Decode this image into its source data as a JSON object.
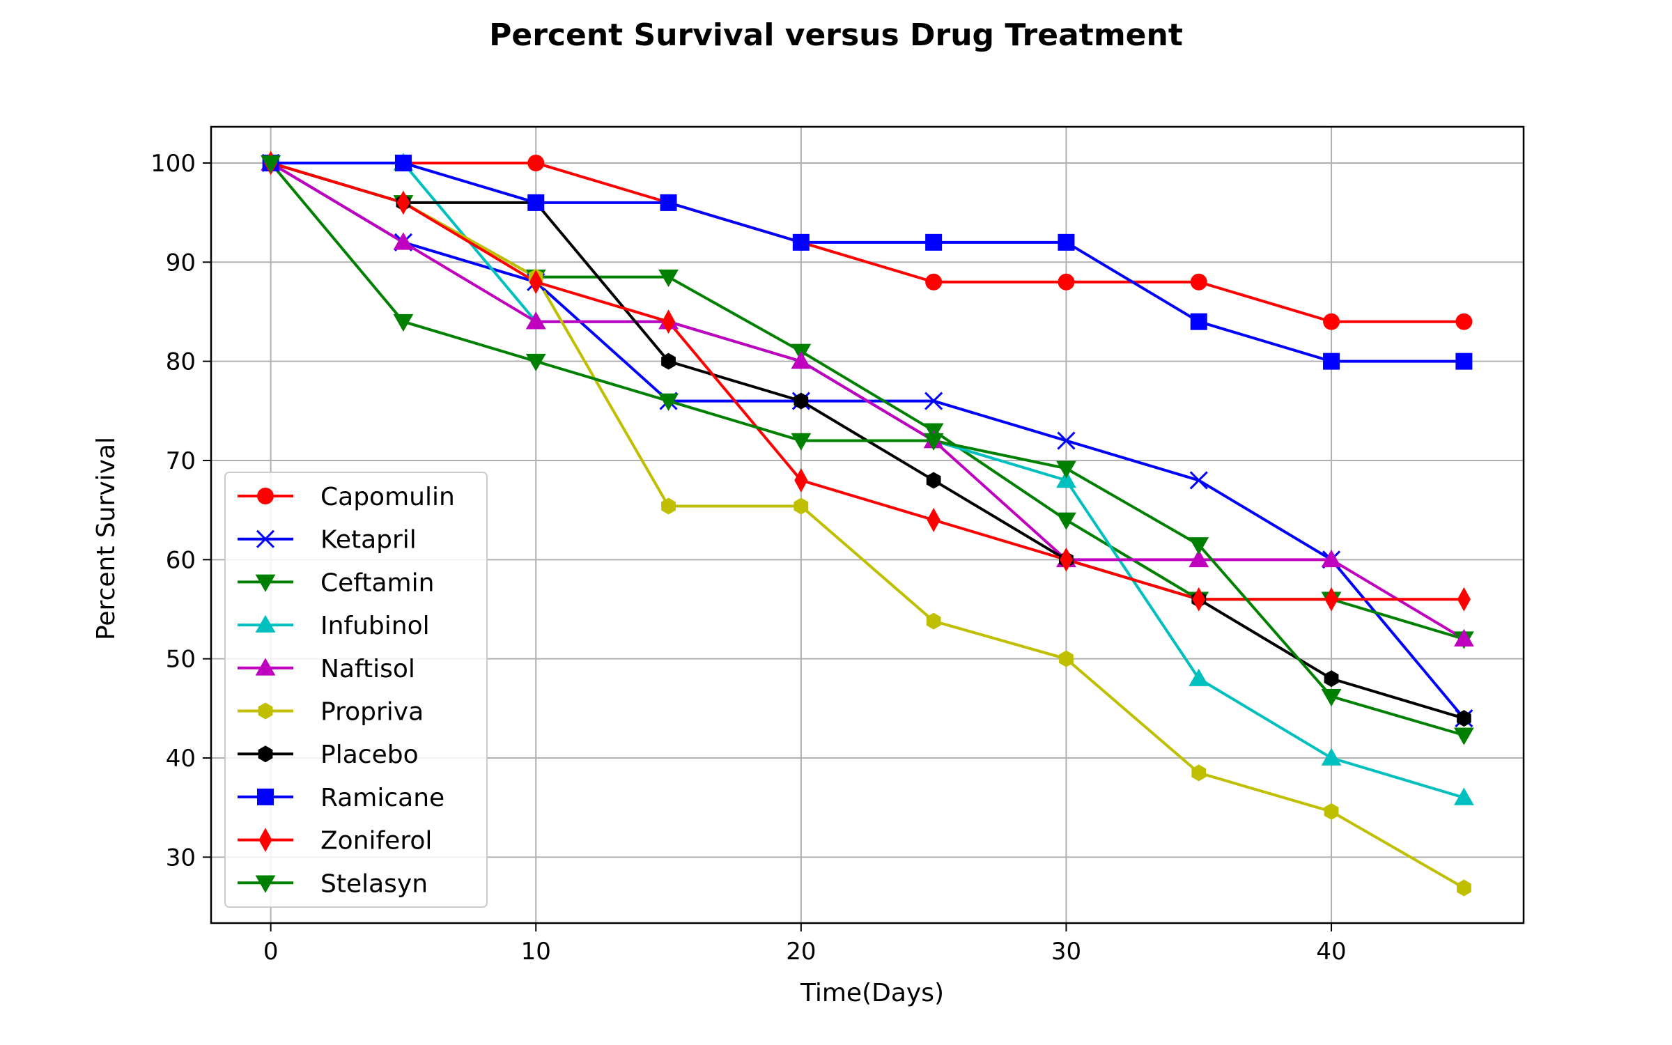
{
  "chart_data": {
    "type": "line",
    "title": "Percent Survival versus Drug Treatment",
    "xlabel": "Time(Days)",
    "ylabel": "Percent Survival",
    "xlim": [
      -2.25,
      47.25
    ],
    "ylim": [
      23.35,
      103.65
    ],
    "xticks": [
      0,
      10,
      20,
      30,
      40
    ],
    "yticks": [
      30,
      40,
      50,
      60,
      70,
      80,
      90,
      100
    ],
    "grid": true,
    "legend_position": "lower-left",
    "x": [
      0,
      5,
      10,
      15,
      20,
      25,
      30,
      35,
      40,
      45
    ],
    "series": [
      {
        "name": "Capomulin",
        "color": "#ff0000",
        "marker": "circle",
        "values": [
          100,
          100,
          100,
          96,
          92,
          88,
          88,
          88,
          84,
          84
        ]
      },
      {
        "name": "Ketapril",
        "color": "#0000ff",
        "marker": "x",
        "values": [
          100,
          92,
          88,
          76,
          76,
          76,
          72,
          68,
          60,
          44
        ]
      },
      {
        "name": "Ceftamin",
        "color": "#008000",
        "marker": "triangle-down",
        "values": [
          100,
          96,
          88.5,
          88.5,
          81,
          73,
          64,
          56,
          56,
          52
        ]
      },
      {
        "name": "Infubinol",
        "color": "#00bfbf",
        "marker": "triangle-up",
        "values": [
          100,
          100,
          84,
          84,
          80,
          72,
          68,
          48,
          40,
          36
        ]
      },
      {
        "name": "Naftisol",
        "color": "#bf00bf",
        "marker": "triangle-up",
        "values": [
          100,
          92,
          84,
          84,
          80,
          72,
          60,
          60,
          60,
          52
        ]
      },
      {
        "name": "Propriva",
        "color": "#bfbf00",
        "marker": "hexagon",
        "values": [
          100,
          96,
          88.5,
          65.4,
          65.4,
          53.8,
          50,
          38.5,
          34.6,
          26.9
        ]
      },
      {
        "name": "Placebo",
        "color": "#000000",
        "marker": "hexagon",
        "values": [
          100,
          96,
          96,
          80,
          76,
          68,
          60,
          56,
          48,
          44
        ]
      },
      {
        "name": "Ramicane",
        "color": "#0000ff",
        "marker": "square",
        "values": [
          100,
          100,
          96,
          96,
          92,
          92,
          92,
          84,
          80,
          80
        ]
      },
      {
        "name": "Zoniferol",
        "color": "#ff0000",
        "marker": "diamond",
        "values": [
          100,
          96,
          88,
          84,
          68,
          64,
          60,
          56,
          56,
          56
        ]
      },
      {
        "name": "Stelasyn",
        "color": "#008000",
        "marker": "triangle-down",
        "values": [
          100,
          84,
          80,
          76,
          72,
          72,
          69.2,
          61.5,
          46.2,
          42.3
        ]
      }
    ]
  }
}
